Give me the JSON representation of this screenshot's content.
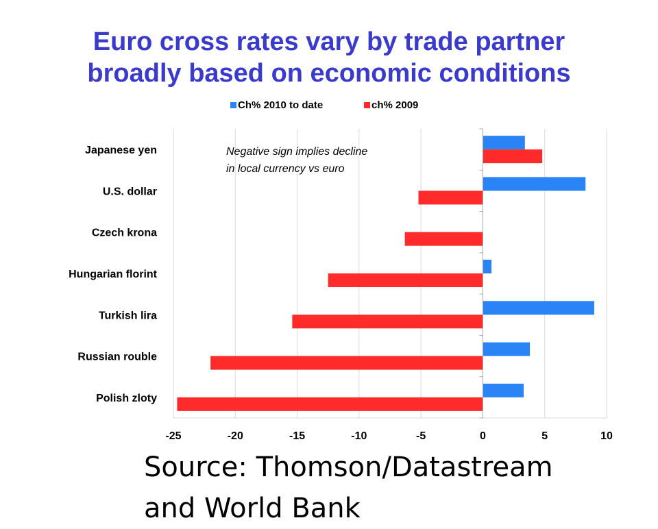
{
  "title": {
    "line1": "Euro cross rates vary by trade partner",
    "line2": "broadly based on economic conditions"
  },
  "annotation": {
    "line1": "Negative sign implies decline",
    "line2": "in local currency vs euro"
  },
  "source": {
    "line1": "Source: Thomson/Datastream",
    "line2_partial": "and World Bank"
  },
  "colors": {
    "title": "#3a3acb",
    "series_2010": "#2b84f5",
    "series_2009": "#ff2a2a"
  },
  "chart_data": {
    "type": "bar",
    "orientation": "horizontal",
    "categories": [
      "Japanese yen",
      "U.S. dollar",
      "Czech krona",
      "Hungarian florint",
      "Turkish lira",
      "Russian rouble",
      "Polish zloty"
    ],
    "series": [
      {
        "name": "Ch% 2010 to date",
        "color": "#2b84f5",
        "values": [
          3.4,
          8.3,
          0,
          0.7,
          9.0,
          3.8,
          3.3
        ]
      },
      {
        "name": "ch% 2009",
        "color": "#ff2a2a",
        "values": [
          4.8,
          -5.2,
          -6.3,
          -12.5,
          -15.4,
          -22.0,
          -24.7
        ]
      }
    ],
    "xlim": [
      -25,
      10
    ],
    "xticks": [
      -25,
      -20,
      -15,
      -10,
      -5,
      0,
      5,
      10
    ],
    "grid": true,
    "legend": "top"
  }
}
